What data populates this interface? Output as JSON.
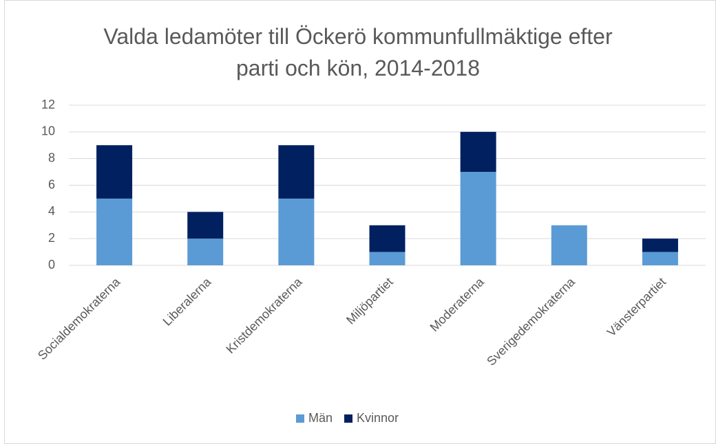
{
  "chart_data": {
    "type": "bar",
    "stacked": true,
    "title": "Valda ledamöter till Öckerö kommunfullmäktige efter parti och kön, 2014-2018",
    "categories": [
      "Socialdemokraterna",
      "Liberalerna",
      "Kristdemokraterna",
      "Miljöpartiet",
      "Moderaterna",
      "Sverigedemokraterna",
      "Vänsterpartiet"
    ],
    "series": [
      {
        "name": "Män",
        "color": "#5b9bd5",
        "values": [
          5,
          2,
          5,
          1,
          7,
          3,
          1
        ]
      },
      {
        "name": "Kvinnor",
        "color": "#002060",
        "values": [
          4,
          2,
          4,
          2,
          3,
          0,
          1
        ]
      }
    ],
    "ylim": [
      0,
      12
    ],
    "yticks": [
      0,
      2,
      4,
      6,
      8,
      10,
      12
    ],
    "grid": true,
    "legend": "bottom"
  }
}
